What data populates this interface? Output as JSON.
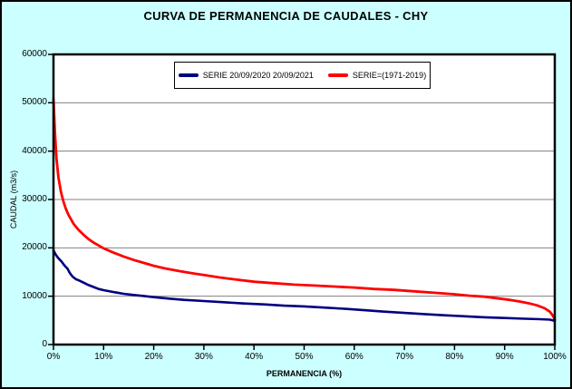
{
  "chart_data": {
    "type": "line",
    "title": "CURVA DE PERMANENCIA DE CAUDALES - CHY",
    "xlabel": "PERMANENCIA (%)",
    "ylabel": "CAUDAL (m3/s)",
    "xlim": [
      0,
      100
    ],
    "ylim": [
      0,
      60000
    ],
    "grid": "horizontal",
    "legend_position": "top-center-inside",
    "background": "#CCFFFF",
    "plot_background": "#FFFFFF",
    "gridline_color": "#808080",
    "axis_color": "#000000",
    "x_ticks": [
      {
        "v": 0,
        "label": "0%"
      },
      {
        "v": 10,
        "label": "10%"
      },
      {
        "v": 20,
        "label": "20%"
      },
      {
        "v": 30,
        "label": "30%"
      },
      {
        "v": 40,
        "label": "40%"
      },
      {
        "v": 50,
        "label": "50%"
      },
      {
        "v": 60,
        "label": "60%"
      },
      {
        "v": 70,
        "label": "70%"
      },
      {
        "v": 80,
        "label": "80%"
      },
      {
        "v": 90,
        "label": "90%"
      },
      {
        "v": 100,
        "label": "100%"
      }
    ],
    "y_ticks": [
      {
        "v": 0,
        "label": "0"
      },
      {
        "v": 10000,
        "label": "10000"
      },
      {
        "v": 20000,
        "label": "20000"
      },
      {
        "v": 30000,
        "label": "30000"
      },
      {
        "v": 40000,
        "label": "40000"
      },
      {
        "v": 50000,
        "label": "50000"
      },
      {
        "v": 60000,
        "label": "60000"
      }
    ],
    "series": [
      {
        "name": "SERIE 20/09/2020 20/09/2021",
        "color": "#000080",
        "width": 2.6,
        "points": [
          [
            0,
            19500
          ],
          [
            0.4,
            18700
          ],
          [
            0.8,
            18100
          ],
          [
            1.2,
            17600
          ],
          [
            1.6,
            17200
          ],
          [
            2,
            16600
          ],
          [
            2.4,
            16100
          ],
          [
            2.8,
            15700
          ],
          [
            3.2,
            14900
          ],
          [
            3.6,
            14300
          ],
          [
            4,
            13900
          ],
          [
            4.5,
            13500
          ],
          [
            5,
            13300
          ],
          [
            6,
            12800
          ],
          [
            7,
            12300
          ],
          [
            8,
            11900
          ],
          [
            9,
            11500
          ],
          [
            10,
            11250
          ],
          [
            12,
            10850
          ],
          [
            14,
            10500
          ],
          [
            16,
            10250
          ],
          [
            18,
            10050
          ],
          [
            20,
            9800
          ],
          [
            23,
            9500
          ],
          [
            26,
            9250
          ],
          [
            30,
            9000
          ],
          [
            34,
            8750
          ],
          [
            38,
            8500
          ],
          [
            42,
            8300
          ],
          [
            46,
            8050
          ],
          [
            50,
            7900
          ],
          [
            54,
            7650
          ],
          [
            58,
            7400
          ],
          [
            62,
            7100
          ],
          [
            66,
            6800
          ],
          [
            70,
            6550
          ],
          [
            74,
            6300
          ],
          [
            78,
            6050
          ],
          [
            82,
            5850
          ],
          [
            86,
            5650
          ],
          [
            90,
            5500
          ],
          [
            94,
            5350
          ],
          [
            97,
            5250
          ],
          [
            99,
            5150
          ],
          [
            100,
            4900
          ]
        ]
      },
      {
        "name": "SERIE=(1971-2019)",
        "color": "#FF0000",
        "width": 2.8,
        "points": [
          [
            0,
            50800
          ],
          [
            0.3,
            43500
          ],
          [
            0.6,
            38500
          ],
          [
            1,
            34500
          ],
          [
            1.5,
            31500
          ],
          [
            2,
            29500
          ],
          [
            2.5,
            28000
          ],
          [
            3,
            26800
          ],
          [
            4,
            25000
          ],
          [
            5,
            23700
          ],
          [
            6,
            22700
          ],
          [
            7,
            21800
          ],
          [
            8,
            21100
          ],
          [
            9,
            20500
          ],
          [
            10,
            19900
          ],
          [
            12,
            19000
          ],
          [
            14,
            18200
          ],
          [
            16,
            17500
          ],
          [
            18,
            16900
          ],
          [
            20,
            16300
          ],
          [
            22,
            15800
          ],
          [
            25,
            15200
          ],
          [
            28,
            14700
          ],
          [
            30,
            14400
          ],
          [
            33,
            13900
          ],
          [
            36,
            13500
          ],
          [
            40,
            13000
          ],
          [
            44,
            12700
          ],
          [
            48,
            12400
          ],
          [
            52,
            12200
          ],
          [
            56,
            12000
          ],
          [
            60,
            11800
          ],
          [
            64,
            11500
          ],
          [
            68,
            11300
          ],
          [
            72,
            11000
          ],
          [
            76,
            10700
          ],
          [
            80,
            10400
          ],
          [
            83,
            10100
          ],
          [
            86,
            9900
          ],
          [
            89,
            9500
          ],
          [
            91,
            9250
          ],
          [
            93,
            8900
          ],
          [
            95,
            8500
          ],
          [
            96.5,
            8100
          ],
          [
            98,
            7500
          ],
          [
            99,
            6800
          ],
          [
            99.6,
            6000
          ],
          [
            100,
            5200
          ]
        ]
      }
    ]
  }
}
